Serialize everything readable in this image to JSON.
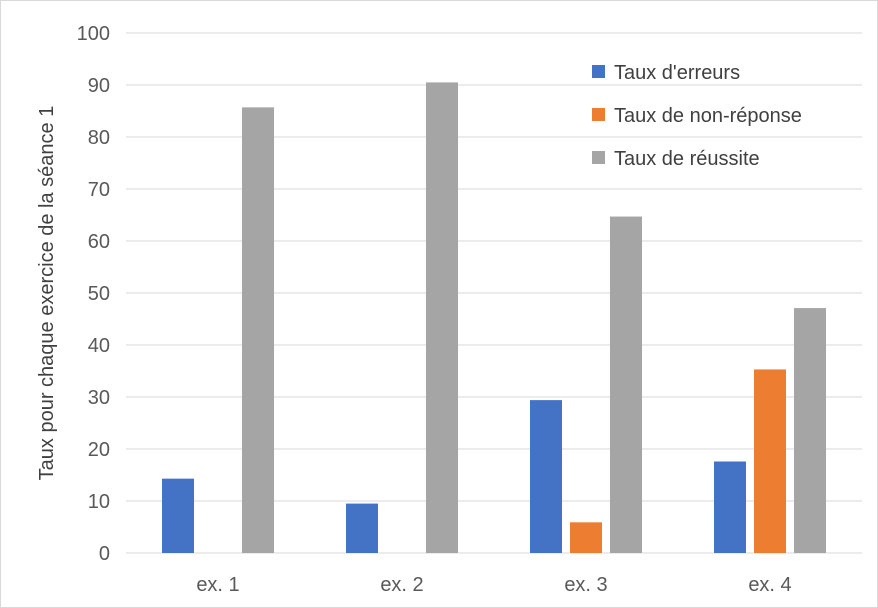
{
  "chart_data": {
    "type": "bar",
    "title": "",
    "xlabel": "",
    "ylabel": "Taux pour chaque exercice de la séance 1",
    "categories": [
      "ex. 1",
      "ex. 2",
      "ex. 3",
      "ex. 4"
    ],
    "series": [
      {
        "name": "Taux d'erreurs",
        "color": "#4472c4",
        "values": [
          14.3,
          9.5,
          29.4,
          17.6
        ]
      },
      {
        "name": "Taux de non-réponse",
        "color": "#ed7d31",
        "values": [
          0,
          0,
          5.9,
          35.3
        ]
      },
      {
        "name": "Taux de réussite",
        "color": "#a5a5a5",
        "values": [
          85.7,
          90.5,
          64.7,
          47.1
        ]
      }
    ],
    "ylim": [
      0,
      100
    ],
    "yticks": [
      0,
      10,
      20,
      30,
      40,
      50,
      60,
      70,
      80,
      90,
      100
    ],
    "grid": true,
    "legend_position": "top-right"
  }
}
